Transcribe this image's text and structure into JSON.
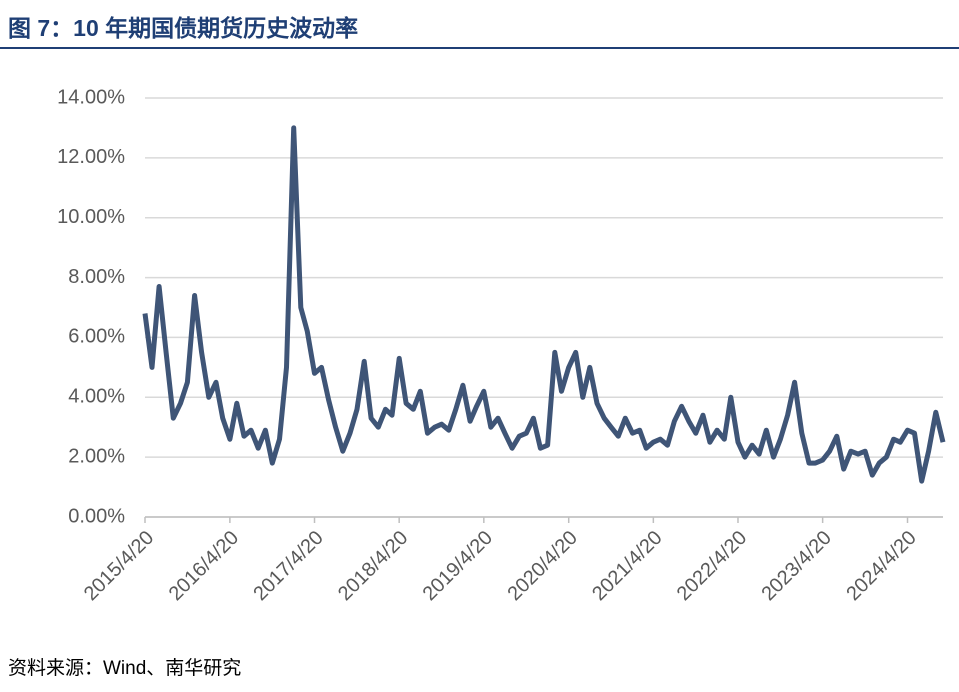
{
  "chart_data": {
    "type": "line",
    "title": "图 7：10 年期国债期货历史波动率",
    "source": "资料来源：Wind、南华研究",
    "x": [
      "2015/4/20",
      "2015/5/20",
      "2015/6/20",
      "2015/7/20",
      "2015/8/20",
      "2015/9/20",
      "2015/10/20",
      "2015/11/20",
      "2015/12/20",
      "2016/1/20",
      "2016/2/20",
      "2016/3/20",
      "2016/4/20",
      "2016/5/20",
      "2016/6/20",
      "2016/7/20",
      "2016/8/20",
      "2016/9/20",
      "2016/10/20",
      "2016/11/20",
      "2016/12/20",
      "2017/1/20",
      "2017/2/20",
      "2017/3/20",
      "2017/4/20",
      "2017/5/20",
      "2017/6/20",
      "2017/7/20",
      "2017/8/20",
      "2017/9/20",
      "2017/10/20",
      "2017/11/20",
      "2017/12/20",
      "2018/1/20",
      "2018/2/20",
      "2018/3/20",
      "2018/4/20",
      "2018/5/20",
      "2018/6/20",
      "2018/7/20",
      "2018/8/20",
      "2018/9/20",
      "2018/10/20",
      "2018/11/20",
      "2018/12/20",
      "2019/1/20",
      "2019/2/20",
      "2019/3/20",
      "2019/4/20",
      "2019/5/20",
      "2019/6/20",
      "2019/7/20",
      "2019/8/20",
      "2019/9/20",
      "2019/10/20",
      "2019/11/20",
      "2019/12/20",
      "2020/1/20",
      "2020/2/20",
      "2020/3/20",
      "2020/4/20",
      "2020/5/20",
      "2020/6/20",
      "2020/7/20",
      "2020/8/20",
      "2020/9/20",
      "2020/10/20",
      "2020/11/20",
      "2020/12/20",
      "2021/1/20",
      "2021/2/20",
      "2021/3/20",
      "2021/4/20",
      "2021/5/20",
      "2021/6/20",
      "2021/7/20",
      "2021/8/20",
      "2021/9/20",
      "2021/10/20",
      "2021/11/20",
      "2021/12/20",
      "2022/1/20",
      "2022/2/20",
      "2022/3/20",
      "2022/4/20",
      "2022/5/20",
      "2022/6/20",
      "2022/7/20",
      "2022/8/20",
      "2022/9/20",
      "2022/10/20",
      "2022/11/20",
      "2022/12/20",
      "2023/1/20",
      "2023/2/20",
      "2023/3/20",
      "2023/4/20",
      "2023/5/20",
      "2023/6/20",
      "2023/7/20",
      "2023/8/20",
      "2023/9/20",
      "2023/10/20",
      "2023/11/20",
      "2023/12/20",
      "2024/1/20",
      "2024/2/20",
      "2024/3/20",
      "2024/4/20",
      "2024/5/20",
      "2024/6/20",
      "2024/7/20",
      "2024/8/20",
      "2024/9/20"
    ],
    "series": [
      {
        "color": "#3f5577",
        "values": [
          6.8,
          5.0,
          7.7,
          5.5,
          3.3,
          3.8,
          4.5,
          7.4,
          5.5,
          4.0,
          4.5,
          3.3,
          2.6,
          3.8,
          2.7,
          2.9,
          2.3,
          2.9,
          1.8,
          2.6,
          5.0,
          13.0,
          7.0,
          6.2,
          4.8,
          5.0,
          3.9,
          3.0,
          2.2,
          2.8,
          3.6,
          5.2,
          3.3,
          3.0,
          3.6,
          3.4,
          5.3,
          3.8,
          3.6,
          4.2,
          2.8,
          3.0,
          3.1,
          2.9,
          3.6,
          4.4,
          3.2,
          3.7,
          4.2,
          3.0,
          3.3,
          2.8,
          2.3,
          2.7,
          2.8,
          3.3,
          2.3,
          2.4,
          5.5,
          4.2,
          5.0,
          5.5,
          4.0,
          5.0,
          3.8,
          3.3,
          3.0,
          2.7,
          3.3,
          2.8,
          2.9,
          2.3,
          2.5,
          2.6,
          2.4,
          3.2,
          3.7,
          3.2,
          2.8,
          3.4,
          2.5,
          2.9,
          2.6,
          4.0,
          2.5,
          2.0,
          2.4,
          2.1,
          2.9,
          2.0,
          2.6,
          3.4,
          4.5,
          2.8,
          1.8,
          1.8,
          1.9,
          2.2,
          2.7,
          1.6,
          2.2,
          2.1,
          2.2,
          1.4,
          1.8,
          2.0,
          2.6,
          2.5,
          2.9,
          2.8,
          1.2,
          2.2,
          3.5,
          2.5
        ]
      }
    ],
    "xlim": [
      "2015/4/20",
      "2024/9/20"
    ],
    "xticks": [
      "2015/4/20",
      "2016/4/20",
      "2017/4/20",
      "2018/4/20",
      "2019/4/20",
      "2020/4/20",
      "2021/4/20",
      "2022/4/20",
      "2023/4/20",
      "2024/4/20"
    ],
    "ylim": [
      0,
      14
    ],
    "yticks": [
      {
        "value": 0,
        "label": "0.00%"
      },
      {
        "value": 2,
        "label": "2.00%"
      },
      {
        "value": 4,
        "label": "4.00%"
      },
      {
        "value": 6,
        "label": "6.00%"
      },
      {
        "value": 8,
        "label": "8.00%"
      },
      {
        "value": 10,
        "label": "10.00%"
      },
      {
        "value": 12,
        "label": "12.00%"
      },
      {
        "value": 14,
        "label": "14.00%"
      }
    ],
    "grid": true
  }
}
